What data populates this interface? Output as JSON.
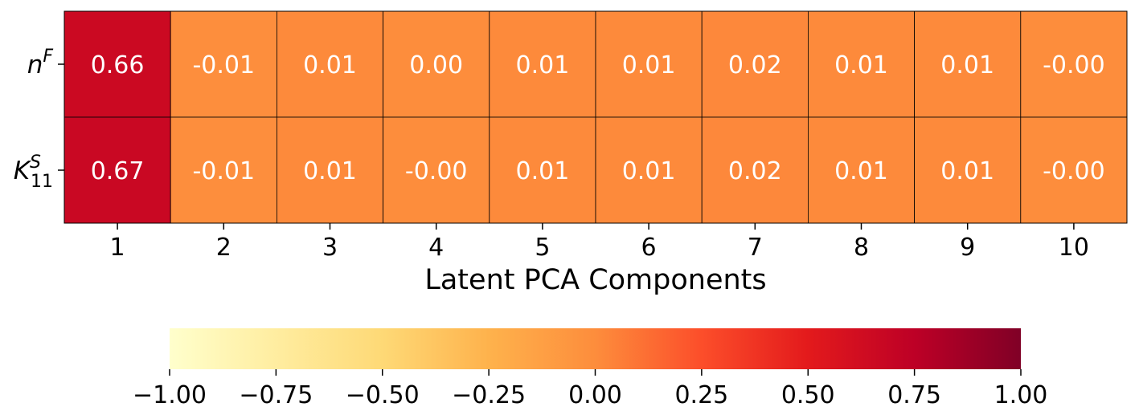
{
  "chart_data": {
    "type": "heatmap",
    "title": "",
    "xlabel": "Latent PCA Components",
    "ylabel": "",
    "x_categories": [
      "1",
      "2",
      "3",
      "4",
      "5",
      "6",
      "7",
      "8",
      "9",
      "10"
    ],
    "rows": [
      {
        "label_base": "n",
        "label_sup": "F",
        "label_sub": "",
        "values": [
          0.66,
          -0.01,
          0.01,
          0.0,
          0.01,
          0.01,
          0.02,
          0.01,
          0.01,
          -0.0
        ],
        "labels": [
          "0.66",
          "-0.01",
          "0.01",
          "0.00",
          "0.01",
          "0.01",
          "0.02",
          "0.01",
          "0.01",
          "-0.00"
        ]
      },
      {
        "label_base": "K",
        "label_sup": "S",
        "label_sub": "11",
        "values": [
          0.67,
          -0.01,
          0.01,
          -0.0,
          0.01,
          0.01,
          0.02,
          0.01,
          0.01,
          -0.0
        ],
        "labels": [
          "0.67",
          "-0.01",
          "0.01",
          "-0.00",
          "0.01",
          "0.01",
          "0.02",
          "0.01",
          "0.01",
          "-0.00"
        ]
      }
    ],
    "colorbar": {
      "colormap": "YlOrRd",
      "range": [
        -1.0,
        1.0
      ],
      "orientation": "horizontal",
      "placement": "bottom",
      "ticks": [
        -1.0,
        -0.75,
        -0.5,
        -0.25,
        0.0,
        0.25,
        0.5,
        0.75,
        1.0
      ],
      "tick_labels": [
        "−1.00",
        "−0.75",
        "−0.50",
        "−0.25",
        "0.00",
        "0.25",
        "0.50",
        "0.75",
        "1.00"
      ]
    },
    "colors": {
      "gradient_stops": [
        "#ffffcc",
        "#ffeda0",
        "#fed976",
        "#feb24c",
        "#fd8d3c",
        "#fc4e2a",
        "#e31a1c",
        "#bd0026",
        "#800026"
      ],
      "cell_text": "#ffffff",
      "cell_border": "#000000",
      "axis": "#000000"
    }
  }
}
